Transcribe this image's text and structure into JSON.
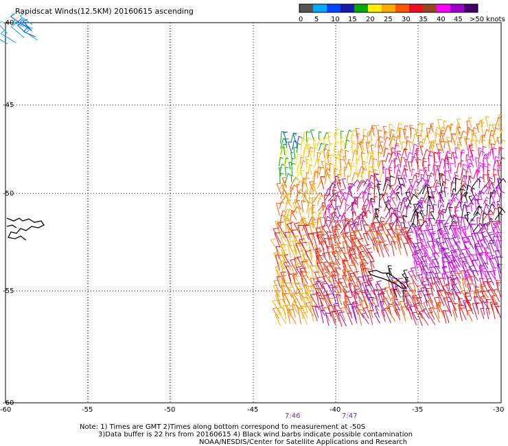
{
  "title": "Rapidscat Winds(12.5KM) 20160615 ascending",
  "legend": {
    "labels": [
      "0",
      "5",
      "10",
      "15",
      "20",
      "25",
      "30",
      "35",
      "40",
      "45",
      ">50 knots"
    ],
    "colors": [
      "#555555",
      "#00aaff",
      "#0044ff",
      "#1a1aaa",
      "#00aa00",
      "#ffee00",
      "#ffaa00",
      "#ff5500",
      "#ee1122",
      "#994422",
      "#ff00ff",
      "#9900cc",
      "#440066"
    ]
  },
  "axes": {
    "lon_ticks": [
      "-60",
      "-55",
      "-50",
      "-45",
      "-40",
      "-35",
      "-30"
    ],
    "lat_ticks": [
      "-40",
      "-45",
      "-50",
      "-55",
      "-60"
    ]
  },
  "times": [
    "7:46",
    "7:47"
  ],
  "notes": {
    "line1": "Note: 1) Times are GMT 2)Times along bottom correspond to measurement at -50S",
    "line2": "3)Data buffer is 22 hrs from 20160615 4) Black wind barbs indicate possible contamination",
    "line3": "NOAA/NESDIS/Center for Satellite Applications and Research"
  }
}
